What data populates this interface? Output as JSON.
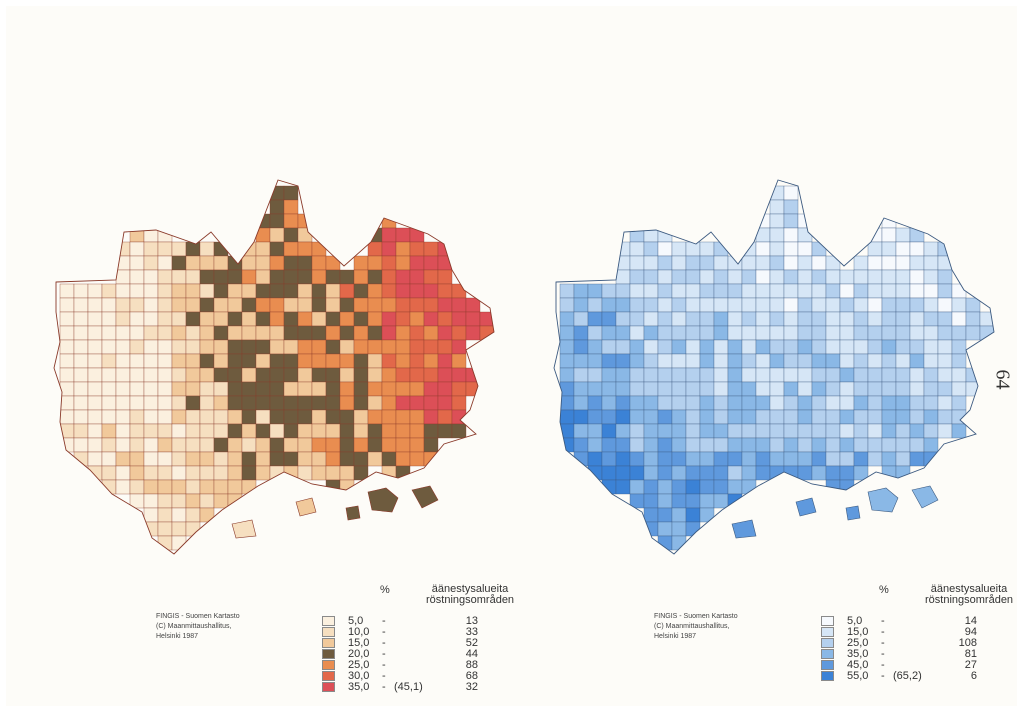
{
  "page_number": "64",
  "maps": [
    {
      "id": "left",
      "colors": {
        "border": "#8a3a2a",
        "background": "#fbf0df"
      },
      "credit": [
        "FINGIS - Suomen Kartasto",
        "(C) Maanmittaushallitus,",
        "Helsinki 1987"
      ],
      "legend": {
        "unit": "%",
        "title_fi": "äänestysalueita",
        "title_sv": "röstningsområden",
        "classes": [
          {
            "lower": "5,0",
            "upper": "",
            "count": "13",
            "color": "#fbf0df"
          },
          {
            "lower": "10,0",
            "upper": "",
            "count": "33",
            "color": "#f6dfc0"
          },
          {
            "lower": "15,0",
            "upper": "",
            "count": "52",
            "color": "#f1c99b"
          },
          {
            "lower": "20,0",
            "upper": "",
            "count": "44",
            "color": "#6e5b3e"
          },
          {
            "lower": "25,0",
            "upper": "",
            "count": "88",
            "color": "#e98d50"
          },
          {
            "lower": "30,0",
            "upper": "",
            "count": "68",
            "color": "#e2684a"
          },
          {
            "lower": "35,0",
            "upper": "(45,1)",
            "count": "32",
            "color": "#dc4f57"
          }
        ]
      }
    },
    {
      "id": "right",
      "colors": {
        "border": "#3c5a80",
        "background": "#f6f9fd"
      },
      "credit": [
        "FINGIS - Suomen Kartasto",
        "(C) Maanmittaushallitus,",
        "Helsinki 1987"
      ],
      "legend": {
        "unit": "%",
        "title_fi": "äänestysalueita",
        "title_sv": "röstningsområden",
        "classes": [
          {
            "lower": "5,0",
            "upper": "",
            "count": "14",
            "color": "#f6f9fd"
          },
          {
            "lower": "15,0",
            "upper": "",
            "count": "94",
            "color": "#d6e6f6"
          },
          {
            "lower": "25,0",
            "upper": "",
            "count": "108",
            "color": "#b4d0ee"
          },
          {
            "lower": "35,0",
            "upper": "",
            "count": "81",
            "color": "#8ab8e6"
          },
          {
            "lower": "45,0",
            "upper": "",
            "count": "27",
            "color": "#5f99dd"
          },
          {
            "lower": "55,0",
            "upper": "(65,2)",
            "count": "6",
            "color": "#3b82d6"
          }
        ]
      }
    }
  ]
}
